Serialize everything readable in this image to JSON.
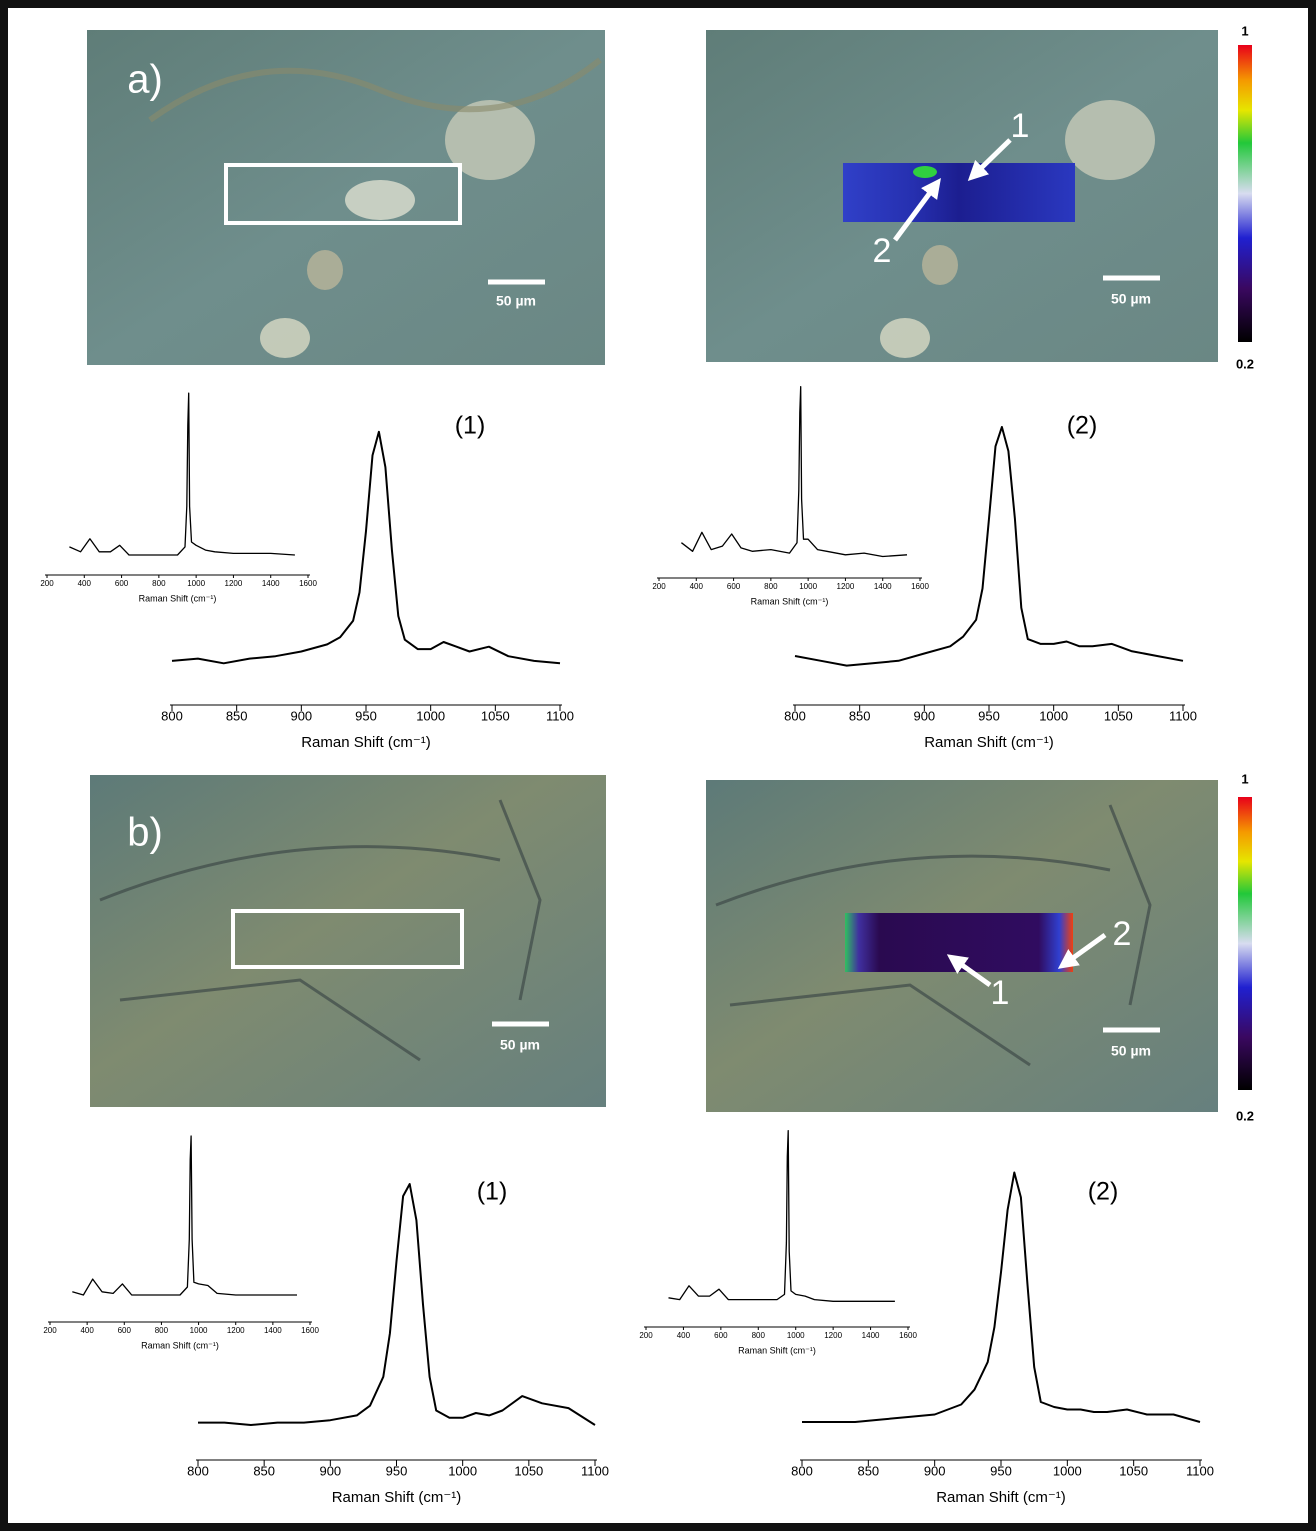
{
  "figure": {
    "panels": [
      {
        "label": "a)",
        "scale_bars": [
          "50 µm",
          "50 µm"
        ],
        "arrows": [
          "1",
          "2"
        ],
        "colorbar": {
          "max": 1,
          "min": 0.2
        }
      },
      {
        "label": "b)",
        "scale_bars": [
          "50 µm",
          "50 µm"
        ],
        "arrows": [
          "2",
          "1"
        ],
        "colorbar": {
          "max": 1,
          "min": 0.2
        }
      }
    ]
  },
  "chart_data": [
    {
      "type": "line",
      "title": "(1)",
      "xlabel": "Raman Shift (cm⁻¹)",
      "color": "#000000",
      "xlim": [
        800,
        1100
      ],
      "xticks": [
        800,
        850,
        900,
        950,
        1000,
        1050,
        1100
      ],
      "ylim": [
        0,
        1.05
      ],
      "x": [
        800,
        820,
        840,
        860,
        880,
        900,
        920,
        930,
        940,
        945,
        950,
        955,
        960,
        965,
        970,
        975,
        980,
        990,
        1000,
        1010,
        1020,
        1030,
        1045,
        1060,
        1080,
        1100
      ],
      "values": [
        0.03,
        0.04,
        0.02,
        0.04,
        0.05,
        0.07,
        0.1,
        0.13,
        0.2,
        0.32,
        0.58,
        0.9,
        1.0,
        0.85,
        0.5,
        0.22,
        0.12,
        0.08,
        0.08,
        0.11,
        0.09,
        0.07,
        0.09,
        0.05,
        0.03,
        0.02
      ]
    },
    {
      "type": "line",
      "xlabel": "Raman Shift (cm⁻¹)",
      "color": "#000000",
      "xlim": [
        200,
        1600
      ],
      "xticks": [
        200,
        400,
        600,
        800,
        1000,
        1200,
        1400,
        1600
      ],
      "ylim": [
        0,
        1.05
      ],
      "x": [
        320,
        380,
        430,
        480,
        540,
        590,
        640,
        700,
        800,
        900,
        940,
        950,
        955,
        960,
        965,
        975,
        1000,
        1050,
        1100,
        1200,
        1300,
        1400,
        1530
      ],
      "values": [
        0.05,
        0.02,
        0.1,
        0.02,
        0.02,
        0.06,
        0.0,
        0.0,
        0.0,
        0.0,
        0.05,
        0.3,
        0.8,
        1.0,
        0.3,
        0.08,
        0.06,
        0.03,
        0.02,
        0.01,
        0.01,
        0.01,
        0.0
      ]
    },
    {
      "type": "line",
      "title": "(2)",
      "xlabel": "Raman Shift (cm⁻¹)",
      "color": "#000000",
      "xlim": [
        800,
        1100
      ],
      "xticks": [
        800,
        850,
        900,
        950,
        1000,
        1050,
        1100
      ],
      "ylim": [
        0,
        1.05
      ],
      "x": [
        800,
        820,
        840,
        860,
        880,
        900,
        920,
        930,
        940,
        945,
        950,
        955,
        960,
        965,
        970,
        975,
        980,
        990,
        1000,
        1010,
        1020,
        1030,
        1045,
        1060,
        1080,
        1100
      ],
      "values": [
        0.05,
        0.03,
        0.01,
        0.02,
        0.03,
        0.06,
        0.09,
        0.13,
        0.2,
        0.33,
        0.62,
        0.92,
        1.0,
        0.9,
        0.62,
        0.25,
        0.12,
        0.1,
        0.1,
        0.11,
        0.09,
        0.09,
        0.1,
        0.07,
        0.05,
        0.03
      ]
    },
    {
      "type": "line",
      "xlabel": "Raman Shift (cm⁻¹)",
      "color": "#000000",
      "xlim": [
        200,
        1600
      ],
      "xticks": [
        200,
        400,
        600,
        800,
        1000,
        1200,
        1400,
        1600
      ],
      "ylim": [
        0,
        1.05
      ],
      "x": [
        320,
        380,
        430,
        480,
        540,
        590,
        640,
        700,
        800,
        900,
        940,
        950,
        955,
        960,
        965,
        975,
        1000,
        1050,
        1100,
        1200,
        1300,
        1400,
        1530
      ],
      "values": [
        0.1,
        0.05,
        0.16,
        0.06,
        0.08,
        0.15,
        0.07,
        0.05,
        0.06,
        0.04,
        0.1,
        0.4,
        0.85,
        1.0,
        0.35,
        0.12,
        0.12,
        0.06,
        0.05,
        0.03,
        0.04,
        0.02,
        0.03
      ]
    },
    {
      "type": "line",
      "title": "(1)",
      "xlabel": "Raman Shift (cm⁻¹)",
      "color": "#000000",
      "xlim": [
        800,
        1100
      ],
      "xticks": [
        800,
        850,
        900,
        950,
        1000,
        1050,
        1100
      ],
      "ylim": [
        0,
        1.05
      ],
      "x": [
        800,
        820,
        840,
        860,
        880,
        900,
        920,
        930,
        940,
        945,
        950,
        955,
        960,
        965,
        970,
        975,
        980,
        990,
        1000,
        1010,
        1020,
        1030,
        1045,
        1060,
        1080,
        1100
      ],
      "values": [
        0.01,
        0.01,
        0.0,
        0.01,
        0.01,
        0.02,
        0.04,
        0.08,
        0.2,
        0.38,
        0.68,
        0.95,
        1.0,
        0.85,
        0.5,
        0.2,
        0.06,
        0.03,
        0.03,
        0.05,
        0.04,
        0.06,
        0.12,
        0.09,
        0.07,
        0.0
      ]
    },
    {
      "type": "line",
      "xlabel": "Raman Shift (cm⁻¹)",
      "color": "#000000",
      "xlim": [
        200,
        1600
      ],
      "xticks": [
        200,
        400,
        600,
        800,
        1000,
        1200,
        1400,
        1600
      ],
      "ylim": [
        0,
        1.05
      ],
      "x": [
        320,
        380,
        430,
        480,
        540,
        590,
        640,
        700,
        800,
        900,
        940,
        950,
        955,
        960,
        965,
        975,
        1000,
        1050,
        1100,
        1200,
        1300,
        1400,
        1530
      ],
      "values": [
        0.02,
        0.0,
        0.1,
        0.02,
        0.01,
        0.07,
        0.0,
        0.0,
        0.0,
        0.0,
        0.05,
        0.35,
        0.85,
        1.0,
        0.35,
        0.08,
        0.07,
        0.06,
        0.01,
        0.0,
        0.0,
        0.0,
        0.0
      ]
    },
    {
      "type": "line",
      "title": "(2)",
      "xlabel": "Raman Shift (cm⁻¹)",
      "color": "#000000",
      "xlim": [
        800,
        1100
      ],
      "xticks": [
        800,
        850,
        900,
        950,
        1000,
        1050,
        1100
      ],
      "ylim": [
        0,
        1.05
      ],
      "x": [
        800,
        820,
        840,
        860,
        880,
        900,
        920,
        930,
        940,
        945,
        950,
        955,
        960,
        965,
        970,
        975,
        980,
        990,
        1000,
        1010,
        1020,
        1030,
        1045,
        1060,
        1080,
        1100
      ],
      "values": [
        0.0,
        0.0,
        0.0,
        0.01,
        0.02,
        0.03,
        0.07,
        0.13,
        0.24,
        0.38,
        0.6,
        0.85,
        1.0,
        0.9,
        0.55,
        0.22,
        0.08,
        0.06,
        0.05,
        0.05,
        0.04,
        0.04,
        0.05,
        0.03,
        0.03,
        0.0
      ]
    },
    {
      "type": "line",
      "xlabel": "Raman Shift (cm⁻¹)",
      "color": "#000000",
      "xlim": [
        200,
        1600
      ],
      "xticks": [
        200,
        400,
        600,
        800,
        1000,
        1200,
        1400,
        1600
      ],
      "ylim": [
        0,
        1.05
      ],
      "x": [
        320,
        380,
        430,
        480,
        540,
        590,
        640,
        700,
        800,
        900,
        940,
        950,
        955,
        960,
        965,
        975,
        1000,
        1050,
        1100,
        1200,
        1300,
        1400,
        1530
      ],
      "values": [
        0.03,
        0.02,
        0.1,
        0.04,
        0.04,
        0.08,
        0.02,
        0.02,
        0.02,
        0.02,
        0.05,
        0.35,
        0.85,
        1.0,
        0.3,
        0.07,
        0.05,
        0.04,
        0.02,
        0.01,
        0.01,
        0.01,
        0.01
      ]
    }
  ]
}
